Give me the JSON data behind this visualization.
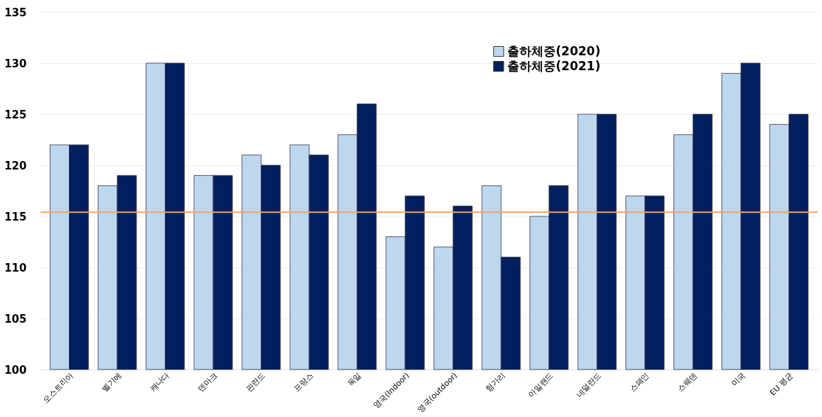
{
  "chart_data": {
    "type": "bar",
    "categories": [
      "오스트리아",
      "벨기에",
      "캐나다",
      "덴마크",
      "핀란드",
      "프랑스",
      "독일",
      "영국(Indoor)",
      "영국(outdoor)",
      "헝가리",
      "아일랜드",
      "네덜란드",
      "스페인",
      "스웨덴",
      "미국",
      "EU 평균"
    ],
    "series": [
      {
        "name": "출하체중(2020)",
        "color": "#bdd7ee",
        "values": [
          122,
          118,
          130,
          119,
          121,
          122,
          123,
          113,
          112,
          118,
          115,
          125,
          117,
          123,
          129,
          124
        ]
      },
      {
        "name": "출하체중(2021)",
        "color": "#002060",
        "values": [
          122,
          119,
          130,
          119,
          120,
          121,
          126,
          117,
          116,
          111,
          118,
          125,
          117,
          125,
          130,
          125
        ]
      }
    ],
    "ylim": [
      100,
      135
    ],
    "yticks": [
      100,
      105,
      110,
      115,
      120,
      125,
      130,
      135
    ],
    "grid": "y",
    "legend": "top right",
    "ref_lines": [
      {
        "axis": "y",
        "value": 115.4,
        "color": "#f4a460"
      }
    ]
  }
}
